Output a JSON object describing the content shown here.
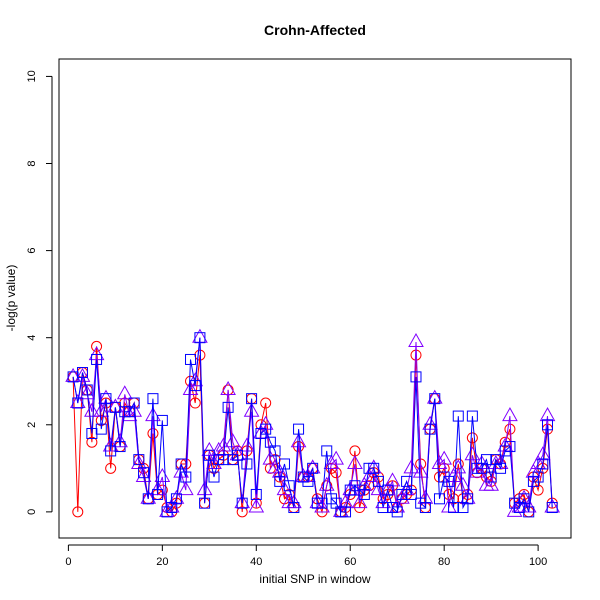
{
  "chart_data": {
    "type": "scatter",
    "title": "Crohn-Affected",
    "xlabel": "initial SNP in window",
    "ylabel": "-log(p value)",
    "xlim": [
      -2,
      107
    ],
    "ylim": [
      -0.6,
      10.4
    ],
    "x_ticks": [
      0,
      20,
      40,
      60,
      80,
      100
    ],
    "y_ticks": [
      0,
      2,
      4,
      6,
      8,
      10
    ],
    "series": [
      {
        "marker": "circle",
        "color": "#ff0000",
        "x": [
          1,
          2,
          3,
          4,
          5,
          6,
          7,
          8,
          9,
          10,
          11,
          12,
          13,
          14,
          15,
          16,
          17,
          18,
          19,
          20,
          21,
          22,
          23,
          24,
          25,
          26,
          27,
          28,
          29,
          30,
          31,
          32,
          33,
          34,
          35,
          36,
          37,
          38,
          39,
          40,
          41,
          42,
          43,
          44,
          45,
          46,
          47,
          48,
          49,
          50,
          51,
          52,
          53,
          54,
          55,
          56,
          57,
          58,
          59,
          60,
          61,
          62,
          63,
          64,
          65,
          66,
          67,
          68,
          69,
          70,
          71,
          72,
          73,
          74,
          75,
          76,
          77,
          78,
          79,
          80,
          81,
          82,
          83,
          84,
          85,
          86,
          87,
          88,
          89,
          90,
          91,
          92,
          93,
          94,
          95,
          96,
          97,
          98,
          99,
          100,
          101,
          102,
          103
        ],
        "y": [
          3.1,
          0.0,
          3.2,
          2.8,
          1.6,
          3.8,
          2.1,
          2.5,
          1.0,
          2.4,
          1.5,
          2.5,
          2.3,
          2.5,
          1.2,
          1.0,
          0.3,
          1.8,
          0.4,
          0.5,
          0.1,
          0.0,
          0.2,
          1.1,
          1.1,
          3.0,
          2.5,
          3.6,
          0.2,
          1.3,
          1.0,
          1.2,
          1.3,
          2.8,
          1.2,
          1.4,
          0.0,
          1.4,
          2.6,
          0.2,
          2.0,
          2.5,
          1.0,
          1.2,
          0.8,
          0.3,
          0.4,
          0.1,
          1.5,
          0.8,
          0.8,
          1.0,
          0.3,
          0.0,
          0.6,
          1.0,
          0.9,
          0.0,
          0.1,
          0.4,
          1.4,
          0.1,
          0.5,
          0.6,
          0.9,
          0.8,
          0.3,
          0.4,
          0.6,
          0.1,
          0.3,
          0.4,
          0.5,
          3.6,
          1.1,
          0.1,
          1.9,
          2.6,
          0.8,
          1.0,
          0.4,
          0.3,
          1.1,
          0.3,
          0.4,
          1.7,
          0.9,
          1.0,
          0.8,
          0.7,
          1.2,
          1.1,
          1.6,
          1.9,
          0.2,
          0.3,
          0.4,
          0.0,
          0.8,
          0.5,
          1.0,
          1.9,
          0.2
        ]
      },
      {
        "marker": "triangle",
        "color": "#8000ff",
        "x": [
          1,
          2,
          3,
          4,
          5,
          6,
          7,
          8,
          9,
          10,
          11,
          12,
          13,
          14,
          15,
          16,
          17,
          18,
          19,
          20,
          21,
          22,
          23,
          24,
          25,
          26,
          27,
          28,
          29,
          30,
          31,
          32,
          33,
          34,
          35,
          36,
          37,
          38,
          39,
          40,
          41,
          42,
          43,
          44,
          45,
          46,
          47,
          48,
          49,
          50,
          51,
          52,
          53,
          54,
          55,
          56,
          57,
          58,
          59,
          60,
          61,
          62,
          63,
          64,
          65,
          66,
          67,
          68,
          69,
          70,
          71,
          72,
          73,
          74,
          75,
          76,
          77,
          78,
          79,
          80,
          81,
          82,
          83,
          84,
          85,
          86,
          87,
          88,
          89,
          90,
          91,
          92,
          93,
          94,
          95,
          96,
          97,
          98,
          99,
          100,
          101,
          102,
          103
        ],
        "y": [
          3.1,
          2.5,
          3.1,
          2.7,
          2.3,
          3.6,
          2.3,
          2.6,
          1.5,
          2.4,
          1.6,
          2.7,
          2.2,
          2.3,
          1.1,
          0.8,
          0.3,
          2.2,
          0.5,
          0.8,
          0.0,
          0.1,
          0.3,
          0.9,
          0.5,
          2.8,
          3.0,
          4.0,
          0.5,
          1.4,
          1.1,
          1.4,
          1.5,
          2.8,
          1.6,
          1.3,
          0.2,
          1.5,
          2.3,
          0.1,
          1.8,
          2.0,
          1.2,
          1.0,
          0.9,
          0.5,
          0.2,
          0.2,
          1.6,
          0.8,
          0.8,
          1.0,
          0.2,
          0.1,
          0.6,
          1.1,
          1.2,
          0.0,
          0.2,
          0.5,
          1.1,
          0.2,
          0.6,
          0.8,
          1.0,
          0.5,
          0.2,
          0.5,
          0.7,
          0.1,
          0.3,
          0.5,
          1.0,
          3.9,
          0.9,
          0.3,
          2.0,
          2.6,
          1.1,
          1.2,
          0.1,
          0.8,
          1.0,
          0.6,
          0.3,
          1.3,
          0.9,
          1.1,
          0.6,
          0.6,
          1.1,
          1.1,
          1.5,
          2.2,
          0.0,
          0.1,
          0.3,
          0.1,
          0.9,
          1.1,
          1.3,
          2.2,
          0.1
        ]
      },
      {
        "marker": "square",
        "color": "#0000ff",
        "x": [
          1,
          2,
          3,
          4,
          5,
          6,
          7,
          8,
          9,
          10,
          11,
          12,
          13,
          14,
          15,
          16,
          17,
          18,
          19,
          20,
          21,
          22,
          23,
          24,
          25,
          26,
          27,
          28,
          29,
          30,
          31,
          32,
          33,
          34,
          35,
          36,
          37,
          38,
          39,
          40,
          41,
          42,
          43,
          44,
          45,
          46,
          47,
          48,
          49,
          50,
          51,
          52,
          53,
          54,
          55,
          56,
          57,
          58,
          59,
          60,
          61,
          62,
          63,
          64,
          65,
          66,
          67,
          68,
          69,
          70,
          71,
          72,
          73,
          74,
          75,
          76,
          77,
          78,
          79,
          80,
          81,
          82,
          83,
          84,
          85,
          86,
          87,
          88,
          89,
          90,
          91,
          92,
          93,
          94,
          95,
          96,
          97,
          98,
          99,
          100,
          101,
          102,
          103
        ],
        "y": [
          3.1,
          2.5,
          3.2,
          2.8,
          1.8,
          3.5,
          1.9,
          2.6,
          1.4,
          2.4,
          1.5,
          2.3,
          2.3,
          2.5,
          1.2,
          0.9,
          0.3,
          2.6,
          0.4,
          2.1,
          0.0,
          0.1,
          0.3,
          1.1,
          0.8,
          3.5,
          2.9,
          4.0,
          0.2,
          1.3,
          0.8,
          1.2,
          1.2,
          2.4,
          1.2,
          1.3,
          0.2,
          1.1,
          2.6,
          0.4,
          1.8,
          1.9,
          1.6,
          1.4,
          0.7,
          1.1,
          0.6,
          0.1,
          1.9,
          0.8,
          0.7,
          1.0,
          0.2,
          0.2,
          1.4,
          0.3,
          0.2,
          0.0,
          0.0,
          0.5,
          0.6,
          0.5,
          0.4,
          1.0,
          1.0,
          0.7,
          0.1,
          0.5,
          0.1,
          0.0,
          0.4,
          0.7,
          0.4,
          3.1,
          0.2,
          0.1,
          1.9,
          2.6,
          0.3,
          0.8,
          0.7,
          0.1,
          2.2,
          0.1,
          0.3,
          2.2,
          1.0,
          1.0,
          1.2,
          0.8,
          1.2,
          1.0,
          1.4,
          1.5,
          0.2,
          0.1,
          0.3,
          0.0,
          0.7,
          0.8,
          1.1,
          2.0,
          0.1
        ]
      }
    ]
  }
}
